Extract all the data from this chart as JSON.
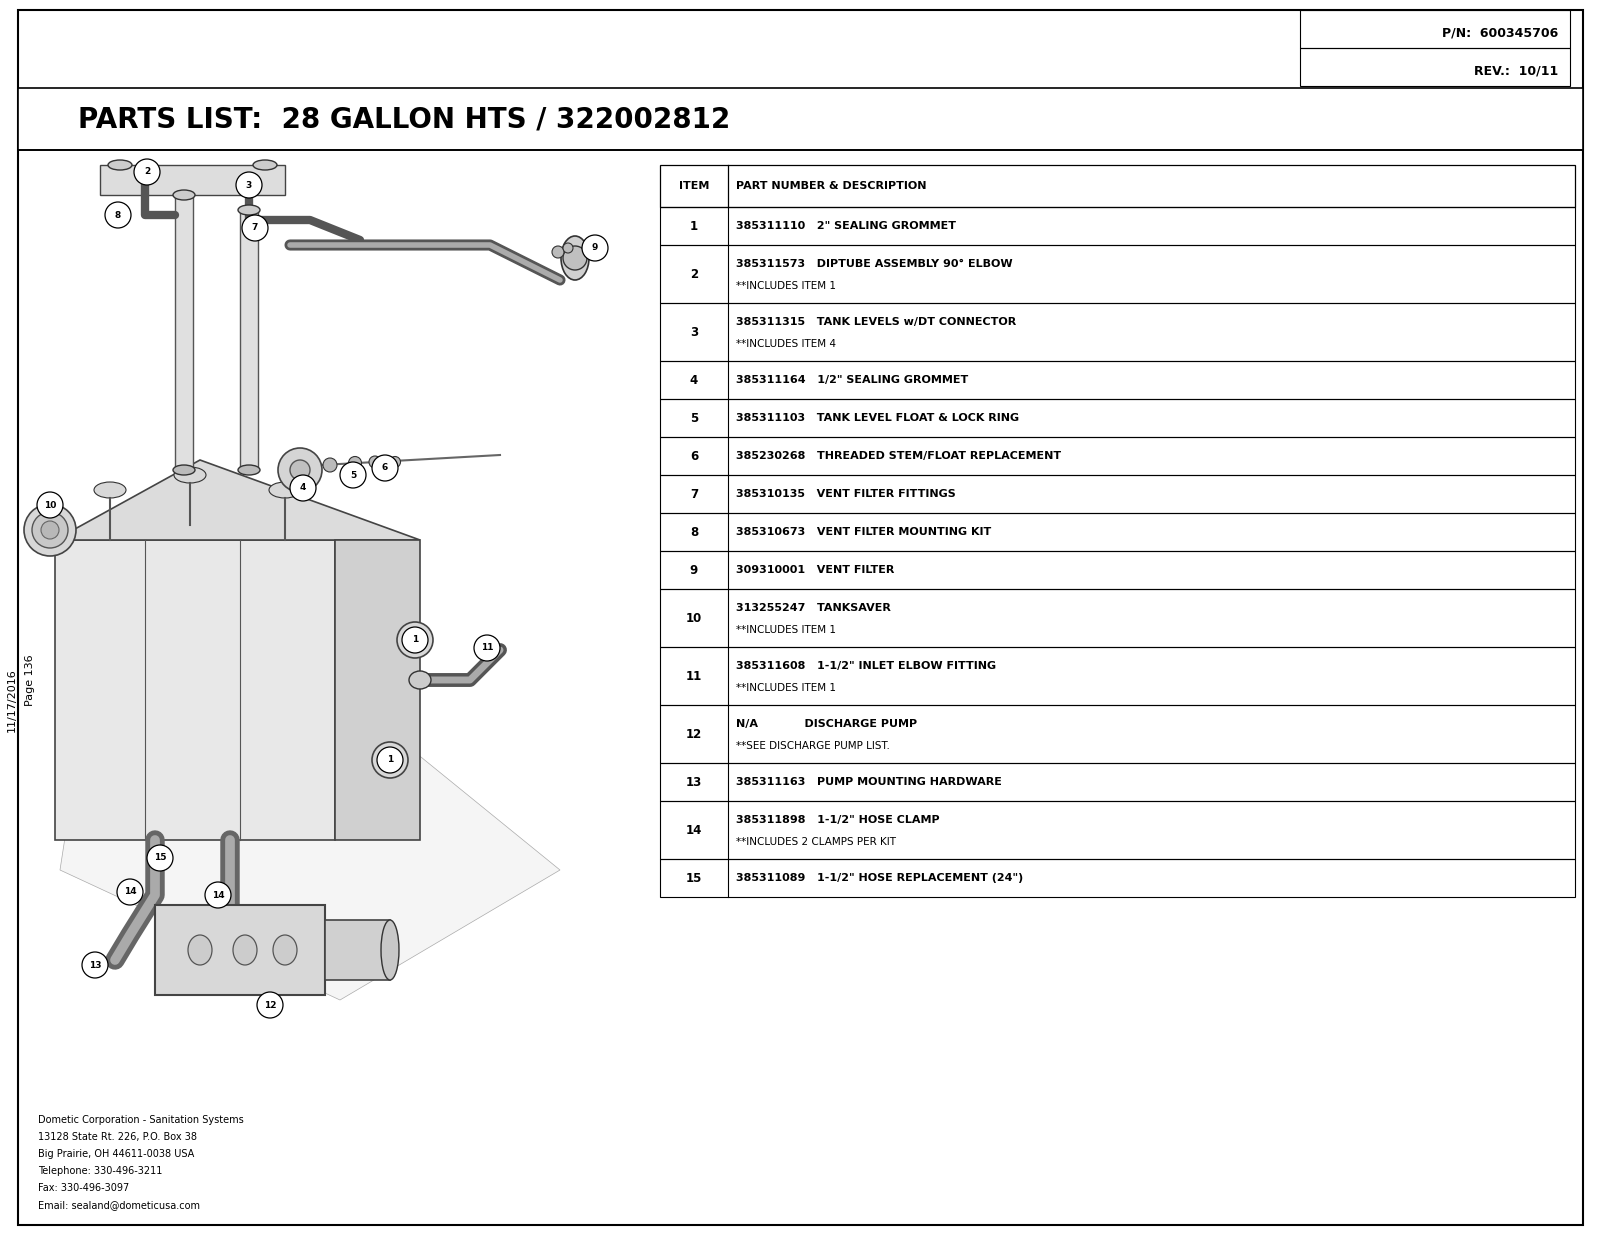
{
  "title_top_right_line1": "P/N:  600345706",
  "title_top_right_line2": "REV.:  10/11",
  "parts_list_title": "PARTS LIST:  28 GALLON HTS / 322002812",
  "table_rows": [
    [
      "1",
      "385311110   2\" SEALING GROMMET",
      ""
    ],
    [
      "2",
      "385311573   DIPTUBE ASSEMBLY 90° ELBOW",
      "**INCLUDES ITEM 1"
    ],
    [
      "3",
      "385311315   TANK LEVELS w/DT CONNECTOR",
      "**INCLUDES ITEM 4"
    ],
    [
      "4",
      "385311164   1/2\" SEALING GROMMET",
      ""
    ],
    [
      "5",
      "385311103   TANK LEVEL FLOAT & LOCK RING",
      ""
    ],
    [
      "6",
      "385230268   THREADED STEM/FLOAT REPLACEMENT",
      ""
    ],
    [
      "7",
      "385310135   VENT FILTER FITTINGS",
      ""
    ],
    [
      "8",
      "385310673   VENT FILTER MOUNTING KIT",
      ""
    ],
    [
      "9",
      "309310001   VENT FILTER",
      ""
    ],
    [
      "10",
      "313255247   TANKSAVER",
      "**INCLUDES ITEM 1"
    ],
    [
      "11",
      "385311608   1-1/2\" INLET ELBOW FITTING",
      "**INCLUDES ITEM 1"
    ],
    [
      "12",
      "N/A            DISCHARGE PUMP",
      "**SEE DISCHARGE PUMP LIST."
    ],
    [
      "13",
      "385311163   PUMP MOUNTING HARDWARE",
      ""
    ],
    [
      "14",
      "385311898   1-1/2\" HOSE CLAMP",
      "**INCLUDES 2 CLAMPS PER KIT"
    ],
    [
      "15",
      "385311089   1-1/2\" HOSE REPLACEMENT (24\")",
      ""
    ]
  ],
  "footer_line1": "Dometic Corporation - Sanitation Systems",
  "footer_line2": "13128 State Rt. 226, P.O. Box 38",
  "footer_line3": "Big Prairie, OH 44611-0038 USA",
  "footer_line4": "Telephone: 330-496-3211",
  "footer_line5": "Fax: 330-496-3097",
  "footer_line6": "Email: sealand@dometicusa.com",
  "page_label": "Page 136",
  "date_label": "11/17/2016",
  "bg_color": "#ffffff"
}
